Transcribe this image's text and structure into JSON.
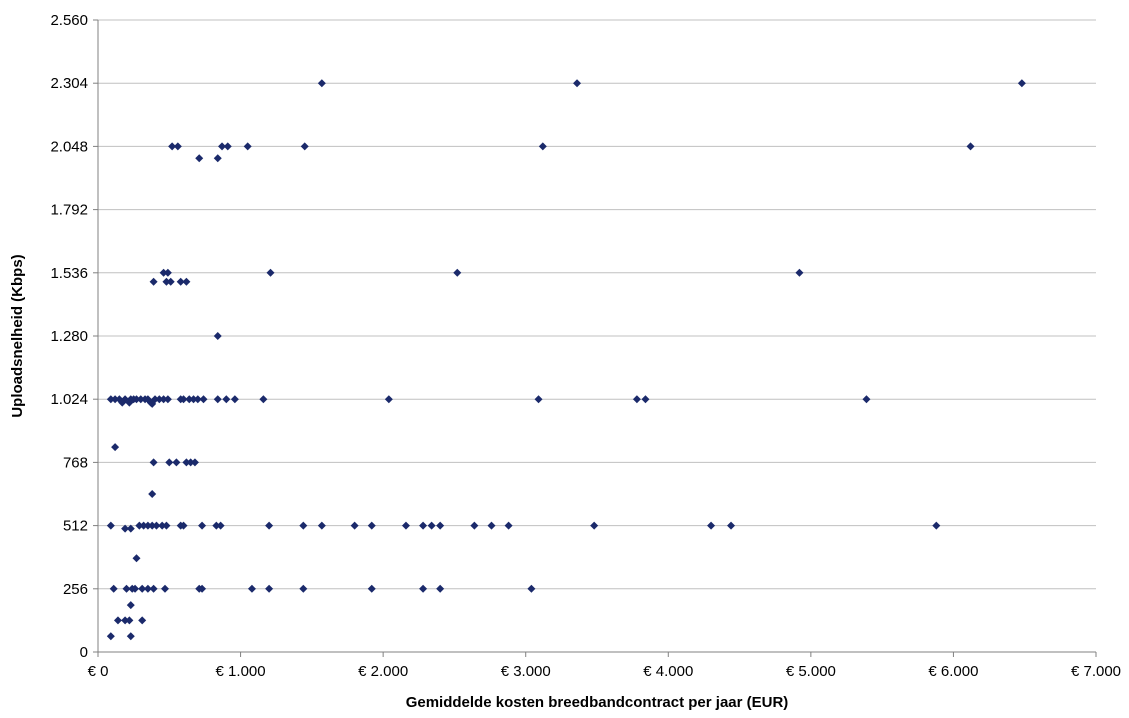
{
  "chart_data": {
    "type": "scatter",
    "xlabel": "Gemiddelde kosten breedbandcontract per jaar (EUR)",
    "ylabel": "Uploadsnelheid (Kbps)",
    "xlim": [
      0,
      7000
    ],
    "ylim": [
      0,
      2560
    ],
    "x_ticks": [
      0,
      1000,
      2000,
      3000,
      4000,
      5000,
      6000,
      7000
    ],
    "x_tick_labels": [
      "€ 0",
      "€ 1.000",
      "€ 2.000",
      "€ 3.000",
      "€ 4.000",
      "€ 5.000",
      "€ 6.000",
      "€ 7.000"
    ],
    "y_ticks": [
      0,
      256,
      512,
      768,
      1024,
      1280,
      1536,
      1792,
      2048,
      2304,
      2560
    ],
    "y_tick_labels": [
      "0",
      "256",
      "512",
      "768",
      "1.024",
      "1.280",
      "1.536",
      "1.792",
      "2.048",
      "2.304",
      "2.560"
    ],
    "grid": "horizontal",
    "legend": "none",
    "marker": "diamond",
    "colors": {
      "marker": "#1b2a6b",
      "gridline": "#c0c0c0",
      "axis": "#808080"
    },
    "series": [
      {
        "points": [
          [
            1570,
            2304
          ],
          [
            3360,
            2304
          ],
          [
            6480,
            2304
          ],
          [
            520,
            2048
          ],
          [
            560,
            2048
          ],
          [
            870,
            2048
          ],
          [
            910,
            2048
          ],
          [
            1050,
            2048
          ],
          [
            1450,
            2048
          ],
          [
            3120,
            2048
          ],
          [
            6120,
            2048
          ],
          [
            710,
            2000
          ],
          [
            840,
            2000
          ],
          [
            1210,
            1536
          ],
          [
            460,
            1536
          ],
          [
            490,
            1536
          ],
          [
            2520,
            1536
          ],
          [
            4920,
            1536
          ],
          [
            390,
            1500
          ],
          [
            480,
            1500
          ],
          [
            510,
            1500
          ],
          [
            580,
            1500
          ],
          [
            620,
            1500
          ],
          [
            840,
            1280
          ],
          [
            90,
            1024
          ],
          [
            120,
            1024
          ],
          [
            150,
            1024
          ],
          [
            190,
            1024
          ],
          [
            230,
            1024
          ],
          [
            250,
            1024
          ],
          [
            270,
            1024
          ],
          [
            300,
            1024
          ],
          [
            330,
            1024
          ],
          [
            350,
            1024
          ],
          [
            400,
            1024
          ],
          [
            430,
            1024
          ],
          [
            460,
            1024
          ],
          [
            490,
            1024
          ],
          [
            580,
            1024
          ],
          [
            600,
            1024
          ],
          [
            640,
            1024
          ],
          [
            670,
            1024
          ],
          [
            700,
            1024
          ],
          [
            740,
            1024
          ],
          [
            840,
            1024
          ],
          [
            900,
            1024
          ],
          [
            960,
            1024
          ],
          [
            1160,
            1024
          ],
          [
            2040,
            1024
          ],
          [
            3090,
            1024
          ],
          [
            3780,
            1024
          ],
          [
            3840,
            1024
          ],
          [
            5390,
            1024
          ],
          [
            170,
            1010
          ],
          [
            220,
            1010
          ],
          [
            370,
            1010
          ],
          [
            380,
            1005
          ],
          [
            120,
            830
          ],
          [
            390,
            768
          ],
          [
            500,
            768
          ],
          [
            550,
            768
          ],
          [
            620,
            768
          ],
          [
            650,
            768
          ],
          [
            680,
            768
          ],
          [
            380,
            640
          ],
          [
            90,
            512
          ],
          [
            290,
            512
          ],
          [
            320,
            512
          ],
          [
            350,
            512
          ],
          [
            380,
            512
          ],
          [
            410,
            512
          ],
          [
            450,
            512
          ],
          [
            480,
            512
          ],
          [
            580,
            512
          ],
          [
            600,
            512
          ],
          [
            730,
            512
          ],
          [
            830,
            512
          ],
          [
            860,
            512
          ],
          [
            1200,
            512
          ],
          [
            1440,
            512
          ],
          [
            1570,
            512
          ],
          [
            1800,
            512
          ],
          [
            1920,
            512
          ],
          [
            2160,
            512
          ],
          [
            2280,
            512
          ],
          [
            2340,
            512
          ],
          [
            2400,
            512
          ],
          [
            2640,
            512
          ],
          [
            2760,
            512
          ],
          [
            2880,
            512
          ],
          [
            3480,
            512
          ],
          [
            4300,
            512
          ],
          [
            4440,
            512
          ],
          [
            5880,
            512
          ],
          [
            190,
            500
          ],
          [
            230,
            500
          ],
          [
            270,
            380
          ],
          [
            110,
            256
          ],
          [
            200,
            256
          ],
          [
            240,
            256
          ],
          [
            260,
            256
          ],
          [
            310,
            256
          ],
          [
            350,
            256
          ],
          [
            390,
            256
          ],
          [
            470,
            256
          ],
          [
            710,
            256
          ],
          [
            730,
            256
          ],
          [
            1080,
            256
          ],
          [
            1200,
            256
          ],
          [
            1440,
            256
          ],
          [
            1920,
            256
          ],
          [
            2280,
            256
          ],
          [
            2400,
            256
          ],
          [
            3040,
            256
          ],
          [
            230,
            190
          ],
          [
            140,
            128
          ],
          [
            190,
            128
          ],
          [
            220,
            128
          ],
          [
            310,
            128
          ],
          [
            90,
            64
          ],
          [
            230,
            64
          ]
        ]
      }
    ]
  }
}
